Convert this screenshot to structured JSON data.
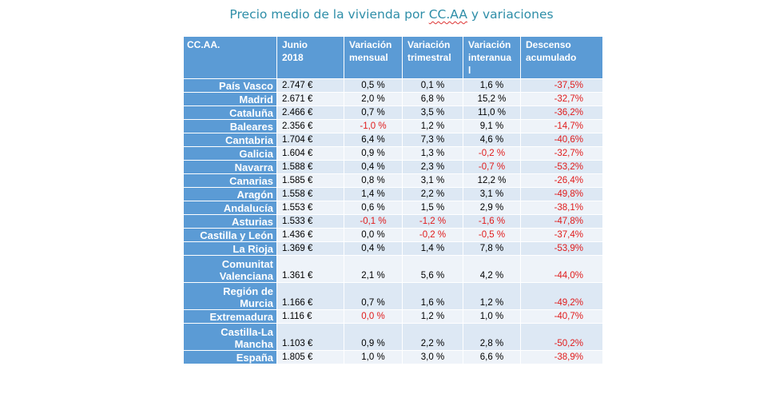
{
  "title": {
    "prefix": "Precio medio de la vivienda por ",
    "underlined": "CC.AA",
    "suffix": " y variaciones"
  },
  "headers": [
    "CC.AA.",
    "Junio\n2018",
    "Variación\nmensual",
    "Variación\ntrimestral",
    "Variación\ninteranua\nl",
    "Descenso\nacumulado"
  ],
  "rows": [
    {
      "region": "País Vasco",
      "precio": "2.747 €",
      "mensual": "0,5 %",
      "trimestral": "0,1 %",
      "interanual": "1,6 %",
      "descenso": "-37,5%"
    },
    {
      "region": "Madrid",
      "precio": "2.671 €",
      "mensual": "2,0 %",
      "trimestral": "6,8 %",
      "interanual": "15,2 %",
      "descenso": "-32,7%"
    },
    {
      "region": "Cataluña",
      "precio": "2.466 €",
      "mensual": "0,7 %",
      "trimestral": "3,5 %",
      "interanual": "11,0 %",
      "descenso": "-36,2%"
    },
    {
      "region": "Baleares",
      "precio": "2.356 €",
      "mensual": "-1,0 %",
      "trimestral": "1,2 %",
      "interanual": "9,1 %",
      "descenso": "-14,7%"
    },
    {
      "region": "Cantabria",
      "precio": "1.704 €",
      "mensual": "6,4 %",
      "trimestral": "7,3 %",
      "interanual": "4,6 %",
      "descenso": "-40,6%"
    },
    {
      "region": "Galicia",
      "precio": "1.604 €",
      "mensual": "0,9 %",
      "trimestral": "1,3 %",
      "interanual": "-0,2 %",
      "descenso": "-32,7%"
    },
    {
      "region": "Navarra",
      "precio": "1.588 €",
      "mensual": "0,4 %",
      "trimestral": "2,3 %",
      "interanual": "-0,7 %",
      "descenso": "-53,2%"
    },
    {
      "region": "Canarias",
      "precio": "1.585 €",
      "mensual": "0,8 %",
      "trimestral": "3,1 %",
      "interanual": "12,2 %",
      "descenso": "-26,4%"
    },
    {
      "region": "Aragón",
      "precio": "1.558 €",
      "mensual": "1,4 %",
      "trimestral": "2,2 %",
      "interanual": "3,1 %",
      "descenso": "-49,8%"
    },
    {
      "region": "Andalucía",
      "precio": "1.553 €",
      "mensual": "0,6 %",
      "trimestral": "1,5 %",
      "interanual": "2,9 %",
      "descenso": "-38,1%"
    },
    {
      "region": "Asturias",
      "precio": "1.533 €",
      "mensual": "-0,1 %",
      "trimestral": "-1,2 %",
      "interanual": "-1,6 %",
      "descenso": "-47,8%"
    },
    {
      "region": "Castilla y León",
      "precio": "1.436 €",
      "mensual": "0,0 %",
      "trimestral": "-0,2 %",
      "interanual": "-0,5 %",
      "descenso": "-37,4%"
    },
    {
      "region": "La Rioja",
      "precio": "1.369 €",
      "mensual": "0,4 %",
      "trimestral": "1,4 %",
      "interanual": "7,8 %",
      "descenso": "-53,9%"
    },
    {
      "region": "Comunitat\nValenciana",
      "precio": "1.361 €",
      "mensual": "2,1 %",
      "trimestral": "5,6 %",
      "interanual": "4,2 %",
      "descenso": "-44,0%"
    },
    {
      "region": "Región de\nMurcia",
      "precio": "1.166 €",
      "mensual": "0,7 %",
      "trimestral": "1,6 %",
      "interanual": "1,2 %",
      "descenso": "-49,2%"
    },
    {
      "region": "Extremadura",
      "precio": "1.116 €",
      "mensual": "0,0 %",
      "trimestral": "1,2 %",
      "interanual": "1,0 %",
      "descenso": "-40,7%"
    },
    {
      "region": "Castilla-La\nMancha",
      "precio": "1.103 €",
      "mensual": "0,9 %",
      "trimestral": "2,2 %",
      "interanual": "2,8 %",
      "descenso": "-50,2%"
    },
    {
      "region": "España",
      "precio": "1.805 €",
      "mensual": "1,0 %",
      "trimestral": "3,0 %",
      "interanual": "6,6 %",
      "descenso": "-38,9%"
    }
  ],
  "red_cells": {
    "mensual": [
      3,
      10,
      15
    ],
    "trimestral": [
      10,
      11
    ],
    "interanual": [
      5,
      6,
      10,
      11
    ],
    "descenso": "all"
  },
  "colors": {
    "title": "#2e8ea8",
    "header_bg": "#5b9bd5",
    "row_odd": "#dde8f4",
    "row_even": "#eef3f9",
    "negative": "#e01b1b"
  }
}
